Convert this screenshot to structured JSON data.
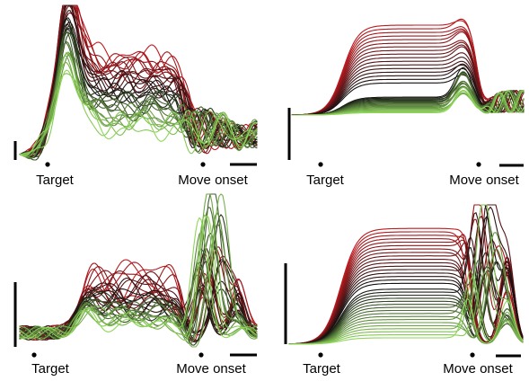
{
  "chart_data": [
    {
      "type": "line",
      "panel": "top-left",
      "event_labels": [
        "Target",
        "Move onset"
      ],
      "scale_bars": [
        "vertical-left",
        "horizontal-right"
      ],
      "color_gradient": [
        "#c0191f",
        "#111111",
        "#8fd65a"
      ],
      "n_traces": 34
    },
    {
      "type": "line",
      "panel": "top-right",
      "event_labels": [
        "Target",
        "Move onset"
      ],
      "scale_bars": [
        "vertical-left",
        "horizontal-right"
      ],
      "color_gradient": [
        "#c0191f",
        "#111111",
        "#8fd65a"
      ],
      "n_traces": 34
    },
    {
      "type": "line",
      "panel": "bottom-left",
      "event_labels": [
        "Target",
        "Move onset"
      ],
      "scale_bars": [
        "vertical-left",
        "horizontal-right"
      ],
      "color_gradient": [
        "#c0191f",
        "#111111",
        "#8fd65a"
      ],
      "n_traces": 34
    },
    {
      "type": "line",
      "panel": "bottom-right",
      "event_labels": [
        "Target",
        "Move onset"
      ],
      "scale_bars": [
        "vertical-left",
        "horizontal-right"
      ],
      "color_gradient": [
        "#c0191f",
        "#111111",
        "#8fd65a"
      ],
      "n_traces": 34
    }
  ]
}
